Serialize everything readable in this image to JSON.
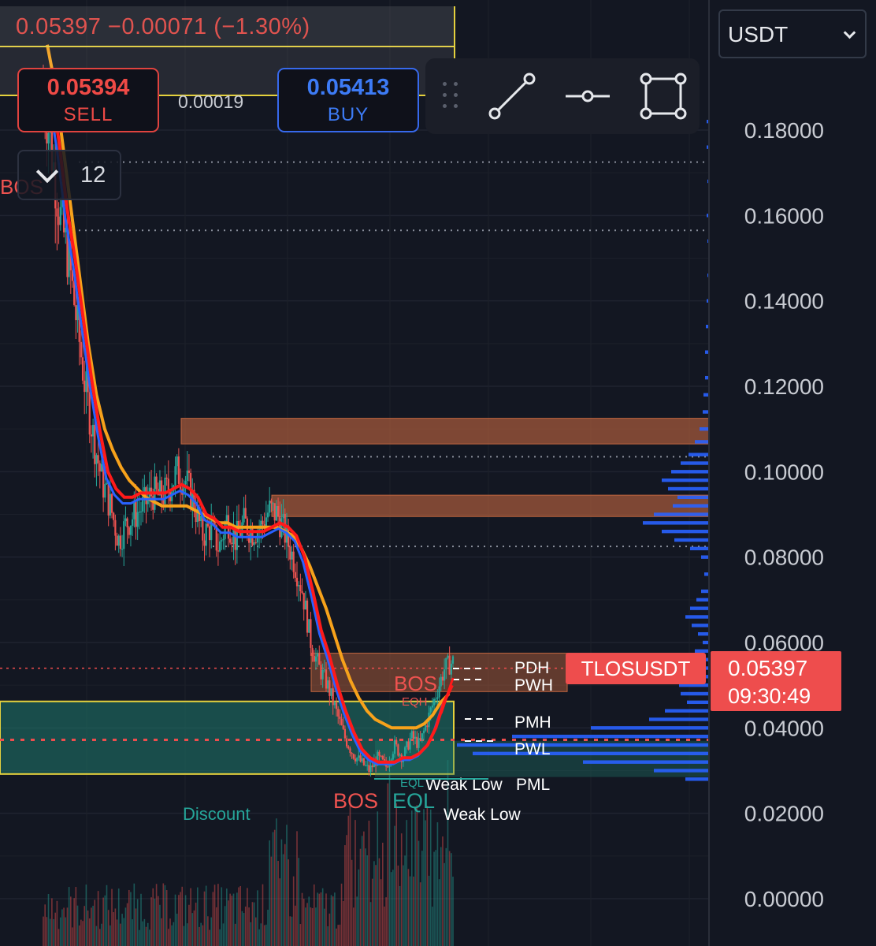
{
  "header": {
    "ohlc_line": "0.05397 −0.00071 (−1.30%)",
    "sell": {
      "price": "0.05394",
      "label": "SELL"
    },
    "buy": {
      "price": "0.05413",
      "label": "BUY"
    },
    "spread": "0.00019",
    "indicator_count": "12"
  },
  "toolbar": {
    "tools": [
      "trend-line-icon",
      "horizontal-ray-icon",
      "rectangle-icon"
    ]
  },
  "currency": {
    "selected": "USDT"
  },
  "symbol": "TLOSUSDT",
  "last_price": "0.05397",
  "countdown": "09:30:49",
  "colors": {
    "background": "#131722",
    "bull": "#26a69a",
    "bear": "#ef5350",
    "ema_fast": "#ff1a1a",
    "ema_mid": "#2962ff",
    "ema_slow": "#f7a21b",
    "supply_zone": "#c0653f",
    "discount_zone": "#1f7a6e",
    "range_box": "#e5d13d",
    "volume_profile": "#2962ff"
  },
  "chart_data": {
    "type": "candlestick",
    "y_axis": {
      "min": 0.0,
      "max": 0.19,
      "ticks": [
        "0.18000",
        "0.16000",
        "0.14000",
        "0.12000",
        "0.10000",
        "0.08000",
        "0.06000",
        "0.04000",
        "0.02000",
        "0.00000"
      ]
    },
    "grid": true,
    "close_path": [
      0.19,
      0.175,
      0.16,
      0.15,
      0.135,
      0.12,
      0.108,
      0.098,
      0.092,
      0.084,
      0.088,
      0.09,
      0.092,
      0.095,
      0.094,
      0.096,
      0.1,
      0.098,
      0.093,
      0.085,
      0.087,
      0.082,
      0.089,
      0.084,
      0.088,
      0.086,
      0.087,
      0.091,
      0.09,
      0.085,
      0.079,
      0.072,
      0.06,
      0.054,
      0.05,
      0.044,
      0.038,
      0.034,
      0.032,
      0.03,
      0.033,
      0.031,
      0.036,
      0.033,
      0.038,
      0.036,
      0.042,
      0.048,
      0.054,
      0.0555
    ],
    "ema_fast": [
      0.19,
      0.178,
      0.162,
      0.15,
      0.136,
      0.122,
      0.11,
      0.1,
      0.096,
      0.094,
      0.094,
      0.095,
      0.095,
      0.095,
      0.095,
      0.096,
      0.097,
      0.096,
      0.094,
      0.09,
      0.089,
      0.087,
      0.087,
      0.086,
      0.086,
      0.086,
      0.086,
      0.087,
      0.088,
      0.087,
      0.085,
      0.08,
      0.072,
      0.063,
      0.057,
      0.05,
      0.044,
      0.039,
      0.035,
      0.033,
      0.032,
      0.032,
      0.032,
      0.033,
      0.033,
      0.034,
      0.036,
      0.04,
      0.046,
      0.05
    ],
    "ema_slow": [
      0.2,
      0.19,
      0.175,
      0.16,
      0.145,
      0.13,
      0.118,
      0.11,
      0.105,
      0.101,
      0.098,
      0.096,
      0.094,
      0.093,
      0.092,
      0.092,
      0.092,
      0.092,
      0.091,
      0.09,
      0.089,
      0.088,
      0.088,
      0.087,
      0.087,
      0.087,
      0.087,
      0.087,
      0.087,
      0.086,
      0.085,
      0.082,
      0.078,
      0.073,
      0.068,
      0.062,
      0.056,
      0.051,
      0.047,
      0.044,
      0.042,
      0.041,
      0.04,
      0.04,
      0.04,
      0.04,
      0.041,
      0.043,
      0.046,
      0.048
    ],
    "zones": [
      {
        "kind": "supply",
        "top": 0.1125,
        "bottom": 0.1065
      },
      {
        "kind": "supply",
        "top": 0.0945,
        "bottom": 0.0895
      },
      {
        "kind": "supply",
        "top": 0.0575,
        "bottom": 0.0485
      },
      {
        "kind": "discount",
        "top": 0.0462,
        "bottom": 0.0292
      }
    ],
    "levels": [
      {
        "price": 0.1725,
        "style": "dotted"
      },
      {
        "price": 0.1565,
        "style": "dotted"
      },
      {
        "price": 0.1035,
        "style": "dotted"
      },
      {
        "price": 0.0825,
        "style": "dotted"
      },
      {
        "price": 0.05397,
        "style": "last"
      },
      {
        "price": 0.0372,
        "style": "dashed"
      }
    ],
    "annotations": [
      {
        "text": "BOS",
        "color": "#ef5350"
      },
      {
        "text": "BOS",
        "color": "#ef5350"
      },
      {
        "text": "EQH",
        "color": "#ef5350"
      },
      {
        "text": "BOS",
        "color": "#ef5350"
      },
      {
        "text": "EQL",
        "color": "#26a69a"
      },
      {
        "text": "EQL",
        "color": "#26a69a"
      },
      {
        "text": "Discount",
        "color": "#26a69a"
      },
      {
        "text": "Weak Low",
        "color": "#ffffff"
      },
      {
        "text": "Weak Low",
        "color": "#ffffff"
      },
      {
        "text": "PDH",
        "color": "#ffffff"
      },
      {
        "text": "PWH",
        "color": "#ffffff"
      },
      {
        "text": "PMH",
        "color": "#ffffff"
      },
      {
        "text": "PWL",
        "color": "#ffffff"
      },
      {
        "text": "PML",
        "color": "#ffffff"
      }
    ],
    "volume_profile": [
      {
        "price": 0.182,
        "width": 3
      },
      {
        "price": 0.176,
        "width": 3
      },
      {
        "price": 0.168,
        "width": 2
      },
      {
        "price": 0.16,
        "width": 3
      },
      {
        "price": 0.154,
        "width": 2
      },
      {
        "price": 0.146,
        "width": 2
      },
      {
        "price": 0.14,
        "width": 3
      },
      {
        "price": 0.134,
        "width": 4
      },
      {
        "price": 0.128,
        "width": 5
      },
      {
        "price": 0.122,
        "width": 5
      },
      {
        "price": 0.118,
        "width": 7
      },
      {
        "price": 0.114,
        "width": 8
      },
      {
        "price": 0.11,
        "width": 12
      },
      {
        "price": 0.107,
        "width": 18
      },
      {
        "price": 0.104,
        "width": 26
      },
      {
        "price": 0.102,
        "width": 36
      },
      {
        "price": 0.1,
        "width": 48
      },
      {
        "price": 0.098,
        "width": 60
      },
      {
        "price": 0.096,
        "width": 52
      },
      {
        "price": 0.094,
        "width": 40
      },
      {
        "price": 0.092,
        "width": 46
      },
      {
        "price": 0.09,
        "width": 70
      },
      {
        "price": 0.088,
        "width": 84
      },
      {
        "price": 0.086,
        "width": 60
      },
      {
        "price": 0.084,
        "width": 44
      },
      {
        "price": 0.082,
        "width": 24
      },
      {
        "price": 0.08,
        "width": 10
      },
      {
        "price": 0.076,
        "width": 6
      },
      {
        "price": 0.072,
        "width": 10
      },
      {
        "price": 0.07,
        "width": 16
      },
      {
        "price": 0.068,
        "width": 24
      },
      {
        "price": 0.066,
        "width": 30
      },
      {
        "price": 0.064,
        "width": 22
      },
      {
        "price": 0.062,
        "width": 14
      },
      {
        "price": 0.06,
        "width": 8
      },
      {
        "price": 0.058,
        "width": 18
      },
      {
        "price": 0.056,
        "width": 28
      },
      {
        "price": 0.054,
        "width": 36
      },
      {
        "price": 0.052,
        "width": 40
      },
      {
        "price": 0.05,
        "width": 38
      },
      {
        "price": 0.048,
        "width": 36
      },
      {
        "price": 0.046,
        "width": 28
      },
      {
        "price": 0.044,
        "width": 56
      },
      {
        "price": 0.042,
        "width": 76
      },
      {
        "price": 0.04,
        "width": 150
      },
      {
        "price": 0.038,
        "width": 250
      },
      {
        "price": 0.036,
        "width": 320
      },
      {
        "price": 0.034,
        "width": 300
      },
      {
        "price": 0.032,
        "width": 160
      },
      {
        "price": 0.03,
        "width": 70
      },
      {
        "price": 0.028,
        "width": 30
      }
    ]
  }
}
